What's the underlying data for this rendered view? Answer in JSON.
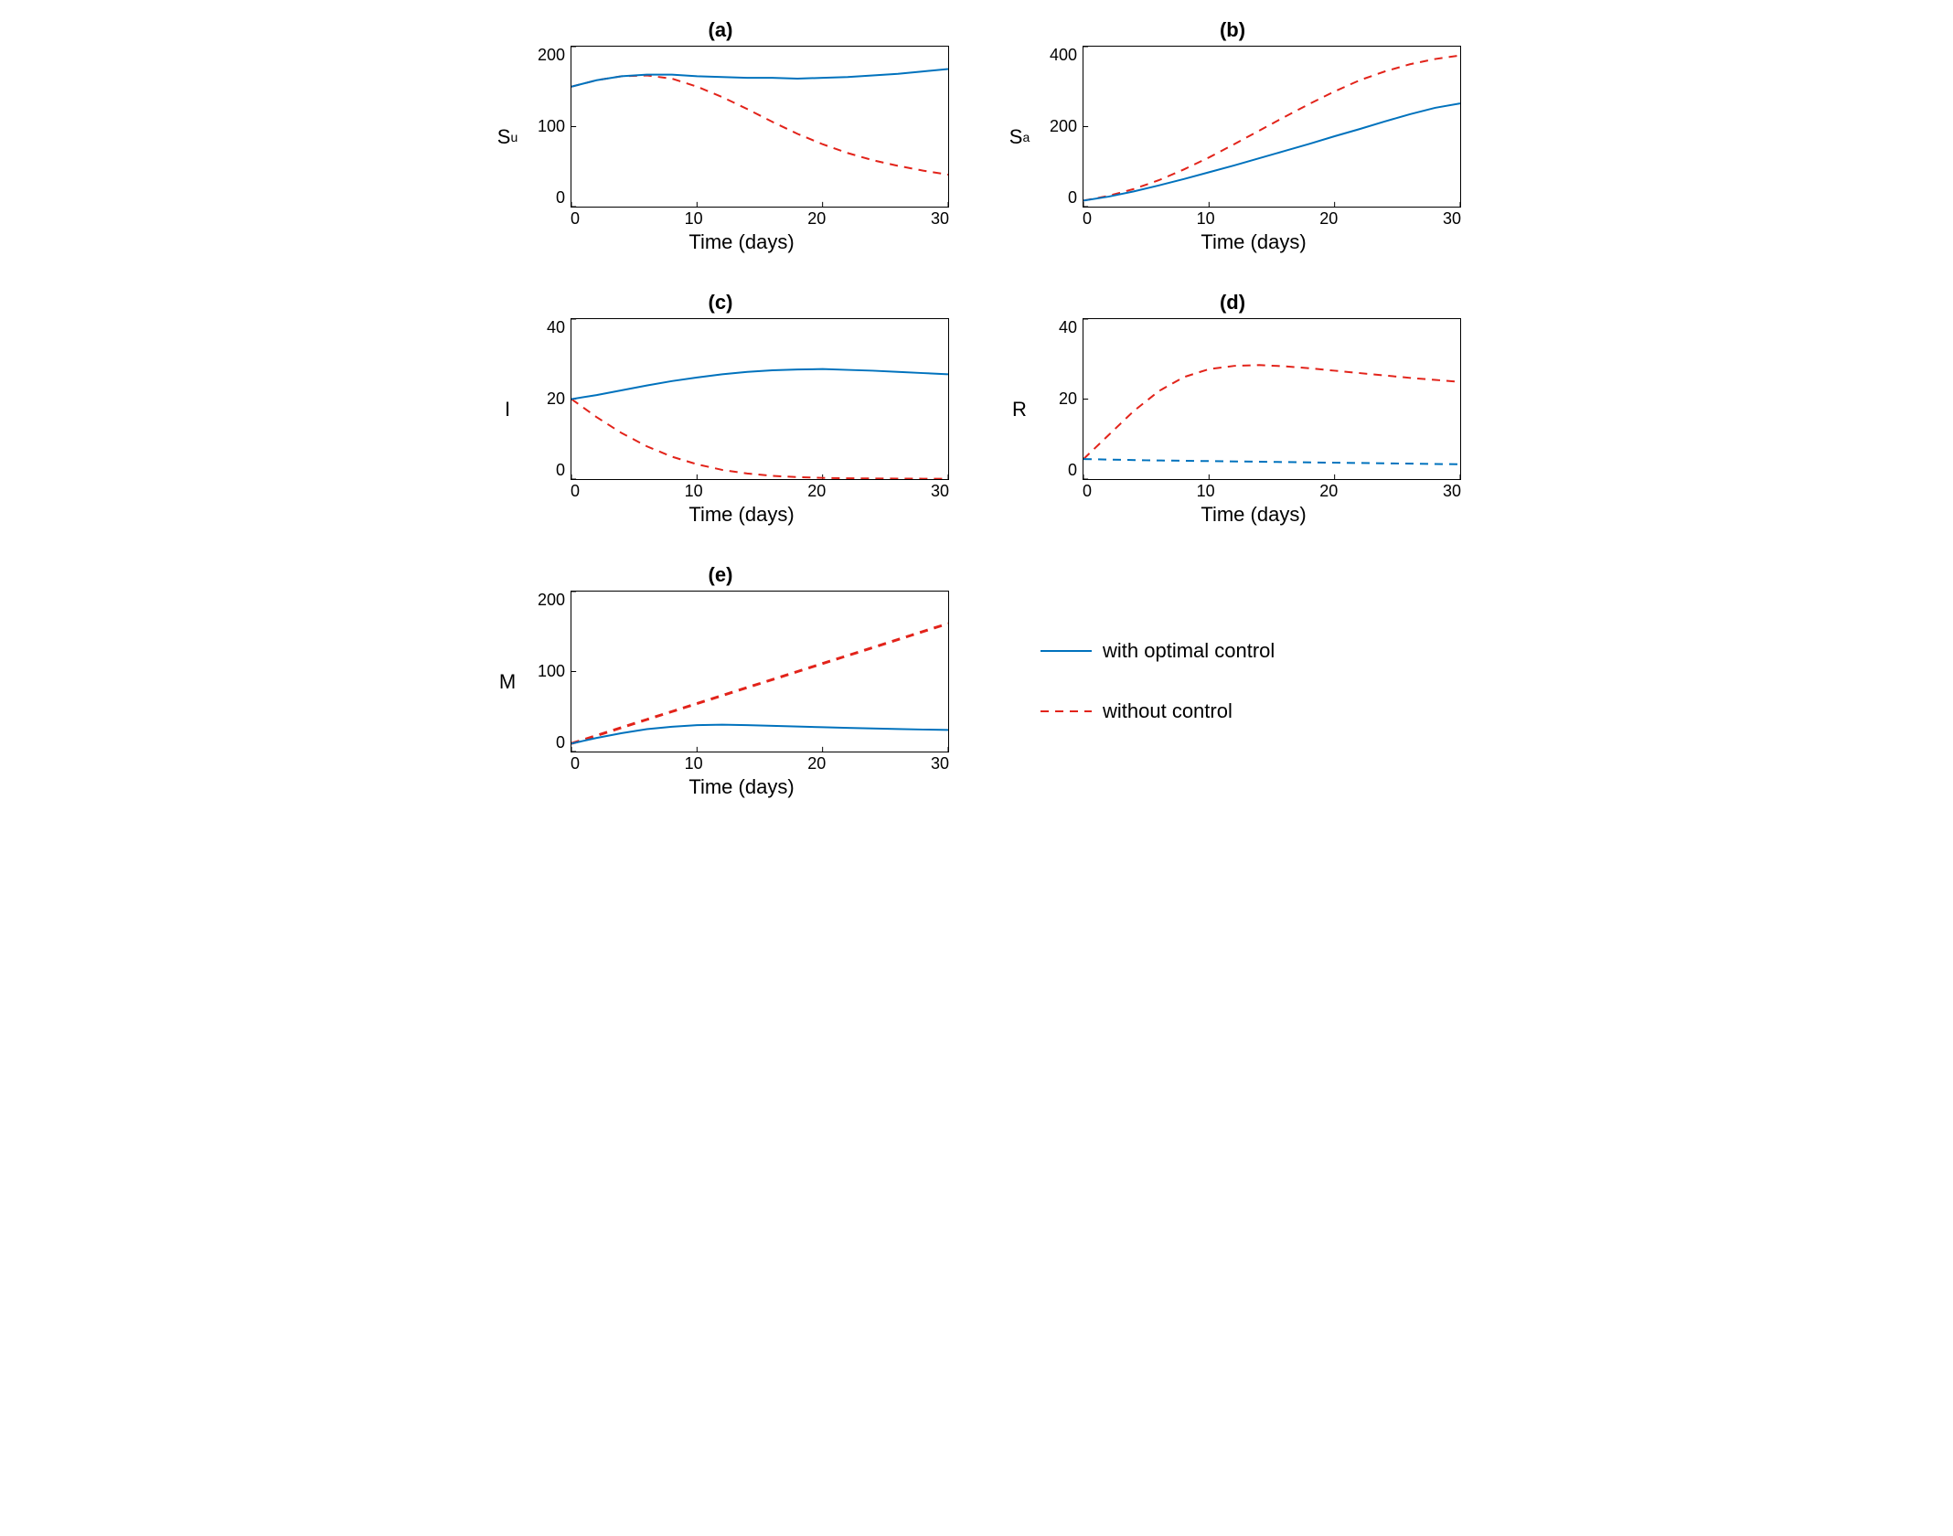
{
  "colors": {
    "with_optimal": "#0072bd",
    "without": "#e2231a",
    "axis": "#000000",
    "bg": "#ffffff"
  },
  "line_width": 2,
  "dash_pattern": "9,7",
  "xlabel": "Time (days)",
  "xlim": [
    0,
    30
  ],
  "xticks": [
    0,
    10,
    20,
    30
  ],
  "legend": {
    "with_optimal": "with optimal control",
    "without": "without control"
  },
  "panels": {
    "a": {
      "title": "(a)",
      "ylabel_html": "S<span class='sub'>u</span>",
      "ylim": [
        0,
        200
      ],
      "yticks": [
        0,
        100,
        200
      ],
      "series": {
        "with_optimal": [
          [
            0,
            150
          ],
          [
            2,
            158
          ],
          [
            4,
            163
          ],
          [
            6,
            165
          ],
          [
            8,
            165
          ],
          [
            10,
            163
          ],
          [
            12,
            162
          ],
          [
            14,
            161
          ],
          [
            16,
            161
          ],
          [
            18,
            160
          ],
          [
            20,
            161
          ],
          [
            22,
            162
          ],
          [
            24,
            164
          ],
          [
            26,
            166
          ],
          [
            28,
            169
          ],
          [
            30,
            172
          ]
        ],
        "without": [
          [
            0,
            150
          ],
          [
            2,
            158
          ],
          [
            4,
            163
          ],
          [
            6,
            164
          ],
          [
            8,
            160
          ],
          [
            10,
            150
          ],
          [
            12,
            137
          ],
          [
            14,
            122
          ],
          [
            16,
            106
          ],
          [
            18,
            91
          ],
          [
            20,
            78
          ],
          [
            22,
            67
          ],
          [
            24,
            58
          ],
          [
            26,
            51
          ],
          [
            28,
            45
          ],
          [
            30,
            40
          ]
        ]
      }
    },
    "b": {
      "title": "(b)",
      "ylabel_html": "S<span class='sub'>a</span>",
      "ylim": [
        0,
        400
      ],
      "yticks": [
        0,
        200,
        400
      ],
      "series": {
        "with_optimal": [
          [
            0,
            15
          ],
          [
            2,
            25
          ],
          [
            4,
            38
          ],
          [
            6,
            53
          ],
          [
            8,
            69
          ],
          [
            10,
            86
          ],
          [
            12,
            103
          ],
          [
            14,
            121
          ],
          [
            16,
            139
          ],
          [
            18,
            157
          ],
          [
            20,
            176
          ],
          [
            22,
            194
          ],
          [
            24,
            213
          ],
          [
            26,
            231
          ],
          [
            28,
            247
          ],
          [
            30,
            258
          ]
        ],
        "without": [
          [
            0,
            15
          ],
          [
            2,
            27
          ],
          [
            4,
            44
          ],
          [
            6,
            66
          ],
          [
            8,
            93
          ],
          [
            10,
            123
          ],
          [
            12,
            156
          ],
          [
            14,
            190
          ],
          [
            16,
            224
          ],
          [
            18,
            257
          ],
          [
            20,
            288
          ],
          [
            22,
            316
          ],
          [
            24,
            338
          ],
          [
            26,
            356
          ],
          [
            28,
            369
          ],
          [
            30,
            378
          ]
        ]
      }
    },
    "c": {
      "title": "(c)",
      "ylabel_html": "I",
      "ylim": [
        0,
        40
      ],
      "yticks": [
        0,
        20,
        40
      ],
      "series": {
        "with_optimal": [
          [
            0,
            20
          ],
          [
            2,
            21
          ],
          [
            4,
            22.2
          ],
          [
            6,
            23.4
          ],
          [
            8,
            24.5
          ],
          [
            10,
            25.4
          ],
          [
            12,
            26.2
          ],
          [
            14,
            26.8
          ],
          [
            16,
            27.2
          ],
          [
            18,
            27.4
          ],
          [
            20,
            27.5
          ],
          [
            22,
            27.3
          ],
          [
            24,
            27.1
          ],
          [
            26,
            26.8
          ],
          [
            28,
            26.5
          ],
          [
            30,
            26.2
          ]
        ],
        "without": [
          [
            0,
            20
          ],
          [
            2,
            15.5
          ],
          [
            4,
            11.5
          ],
          [
            6,
            8.2
          ],
          [
            8,
            5.6
          ],
          [
            10,
            3.7
          ],
          [
            12,
            2.3
          ],
          [
            14,
            1.4
          ],
          [
            16,
            0.8
          ],
          [
            18,
            0.5
          ],
          [
            20,
            0.3
          ],
          [
            22,
            0.2
          ],
          [
            24,
            0.15
          ],
          [
            26,
            0.12
          ],
          [
            28,
            0.1
          ],
          [
            30,
            0.1
          ]
        ]
      }
    },
    "d": {
      "title": "(d)",
      "ylabel_html": "R",
      "ylim": [
        0,
        40
      ],
      "yticks": [
        0,
        20,
        40
      ],
      "series": {
        "with_optimal_dashed": [
          [
            0,
            5
          ],
          [
            5,
            4.7
          ],
          [
            10,
            4.5
          ],
          [
            15,
            4.3
          ],
          [
            20,
            4.1
          ],
          [
            25,
            3.9
          ],
          [
            30,
            3.7
          ]
        ],
        "without": [
          [
            0,
            5
          ],
          [
            2,
            11
          ],
          [
            4,
            17
          ],
          [
            6,
            22
          ],
          [
            8,
            25.5
          ],
          [
            10,
            27.5
          ],
          [
            12,
            28.3
          ],
          [
            14,
            28.5
          ],
          [
            16,
            28.2
          ],
          [
            18,
            27.7
          ],
          [
            20,
            27.1
          ],
          [
            22,
            26.5
          ],
          [
            24,
            25.9
          ],
          [
            26,
            25.3
          ],
          [
            28,
            24.8
          ],
          [
            30,
            24.3
          ]
        ]
      }
    },
    "e": {
      "title": "(e)",
      "ylabel_html": "M",
      "ylim": [
        0,
        200
      ],
      "yticks": [
        0,
        100,
        200
      ],
      "series": {
        "with_optimal": [
          [
            0,
            10
          ],
          [
            2,
            17
          ],
          [
            4,
            23
          ],
          [
            6,
            28
          ],
          [
            8,
            31
          ],
          [
            10,
            33
          ],
          [
            12,
            33.5
          ],
          [
            14,
            33
          ],
          [
            16,
            32.2
          ],
          [
            18,
            31.3
          ],
          [
            20,
            30.4
          ],
          [
            22,
            29.6
          ],
          [
            24,
            28.8
          ],
          [
            26,
            28.1
          ],
          [
            28,
            27.5
          ],
          [
            30,
            27
          ]
        ],
        "without": [
          [
            0,
            10
          ],
          [
            3,
            25
          ],
          [
            6,
            40
          ],
          [
            9,
            55
          ],
          [
            12,
            70
          ],
          [
            15,
            85
          ],
          [
            18,
            100
          ],
          [
            21,
            115
          ],
          [
            24,
            130
          ],
          [
            27,
            145
          ],
          [
            30,
            160
          ]
        ]
      },
      "without_line_width": 3
    }
  }
}
